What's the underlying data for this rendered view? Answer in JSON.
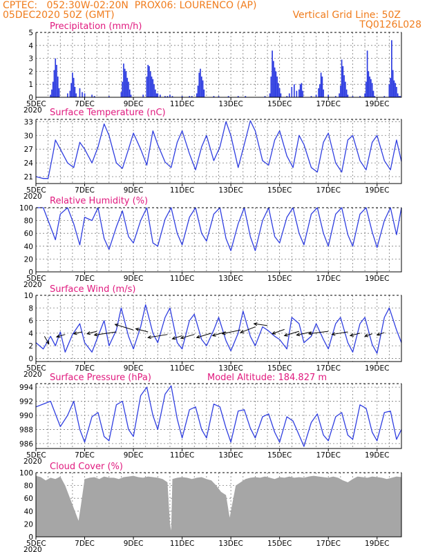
{
  "header": {
    "line1_left": "CPTEC:   052:30W-02:20N  PROX06: LOURENCO (AP)",
    "line2_left": "05DEC2020 50Z (GMT)",
    "line2_right": "Vertical Grid Line: 50Z",
    "line3_right": "TQ0126L028"
  },
  "x_axis": {
    "tick_labels": [
      "5DEC",
      "7DEC",
      "9DEC",
      "11DEC",
      "13DEC",
      "15DEC",
      "17DEC",
      "19DEC"
    ],
    "tick_days": [
      5,
      7,
      9,
      11,
      13,
      15,
      17,
      19
    ],
    "extra_tick_label": "2020",
    "range_days": [
      5,
      20
    ]
  },
  "colors": {
    "series": "#2e3de0",
    "bars": "#2e3de0",
    "cloud": "#a6a6a6",
    "header": "#f07c1c",
    "title": "#e0197e"
  },
  "chart_data": [
    {
      "id": "precip",
      "type": "bar",
      "title": "Precipitation (mm/h)",
      "ylim": [
        0,
        5
      ],
      "yticks": [
        0,
        1,
        2,
        3,
        4,
        5
      ],
      "x_unit": "day (Dec 2020)",
      "x": [
        5.6,
        5.65,
        5.7,
        5.75,
        5.8,
        5.85,
        5.9,
        5.95,
        6.3,
        6.4,
        6.45,
        6.5,
        6.55,
        6.6,
        6.65,
        6.8,
        6.9,
        7.0,
        7.3,
        7.4,
        8.0,
        8.5,
        8.55,
        8.6,
        8.65,
        8.7,
        8.75,
        8.8,
        8.85,
        8.9,
        9.4,
        9.55,
        9.6,
        9.65,
        9.7,
        9.75,
        9.8,
        9.85,
        9.9,
        9.95,
        10.0,
        10.1,
        10.3,
        10.4,
        10.5,
        10.6,
        11.0,
        11.3,
        11.4,
        11.6,
        11.65,
        11.7,
        11.75,
        11.8,
        11.85,
        11.9,
        12.3,
        12.5,
        12.9,
        13.3,
        13.6,
        14.4,
        14.6,
        14.65,
        14.7,
        14.75,
        14.8,
        14.85,
        14.9,
        14.95,
        15.0,
        15.05,
        15.3,
        15.4,
        15.5,
        15.6,
        15.7,
        15.8,
        15.85,
        15.9,
        15.95,
        16.3,
        16.5,
        16.6,
        16.65,
        16.7,
        16.75,
        16.8,
        17.0,
        17.3,
        17.45,
        17.5,
        17.55,
        17.6,
        17.65,
        17.7,
        17.75,
        17.8,
        18.0,
        18.3,
        18.5,
        18.55,
        18.6,
        18.65,
        18.7,
        18.75,
        18.8,
        18.85,
        18.9,
        19.3,
        19.5,
        19.55,
        19.6,
        19.65,
        19.7,
        19.75,
        19.8,
        19.85,
        19.9,
        19.95
      ],
      "values": [
        0.2,
        0.6,
        1.2,
        2.1,
        3.0,
        2.5,
        1.6,
        0.7,
        0.3,
        0.5,
        1.1,
        1.9,
        1.5,
        0.8,
        0.3,
        0.7,
        0.4,
        0.3,
        0.2,
        0.1,
        0.1,
        0.4,
        1.2,
        2.6,
        2.2,
        2.0,
        1.5,
        1.2,
        0.6,
        0.2,
        0.2,
        1.6,
        2.5,
        2.4,
        2.0,
        1.6,
        1.4,
        1.0,
        0.6,
        0.3,
        0.3,
        0.2,
        0.1,
        0.1,
        0.2,
        0.1,
        0.1,
        0.1,
        0.1,
        0.3,
        0.9,
        1.9,
        2.2,
        1.6,
        1.3,
        0.6,
        0.1,
        0.1,
        0.1,
        0.1,
        0.1,
        0.1,
        0.3,
        1.6,
        3.6,
        2.8,
        2.3,
        2.0,
        1.6,
        1.1,
        0.7,
        0.3,
        0.1,
        0.3,
        0.8,
        1.0,
        0.5,
        0.6,
        1.0,
        1.1,
        0.5,
        0.1,
        0.2,
        0.7,
        1.0,
        1.9,
        1.6,
        0.6,
        0.2,
        0.1,
        0.3,
        0.9,
        2.9,
        2.4,
        1.7,
        1.2,
        0.6,
        0.2,
        0.1,
        0.1,
        0.3,
        1.2,
        3.6,
        2.0,
        1.6,
        1.4,
        1.1,
        0.5,
        0.1,
        0.1,
        1.0,
        1.5,
        4.4,
        2.1,
        1.3,
        1.1,
        0.8,
        0.3,
        0.1,
        0.1
      ]
    },
    {
      "id": "temp",
      "type": "line",
      "title": "Surface Temperature (nC)",
      "ylim": [
        19.5,
        33.5
      ],
      "yticks": [
        21,
        24,
        27,
        30,
        33
      ],
      "x": [
        5.0,
        5.3,
        5.5,
        5.7,
        5.8,
        6.0,
        6.3,
        6.55,
        6.8,
        7.0,
        7.3,
        7.55,
        7.8,
        8.0,
        8.3,
        8.55,
        8.8,
        9.0,
        9.3,
        9.55,
        9.8,
        10.0,
        10.3,
        10.55,
        10.8,
        11.0,
        11.3,
        11.55,
        11.8,
        12.0,
        12.3,
        12.55,
        12.8,
        13.0,
        13.3,
        13.55,
        13.8,
        14.0,
        14.3,
        14.55,
        14.8,
        15.0,
        15.3,
        15.55,
        15.8,
        16.0,
        16.3,
        16.55,
        16.8,
        17.0,
        17.3,
        17.55,
        17.8,
        18.0,
        18.3,
        18.55,
        18.8,
        19.0,
        19.3,
        19.55,
        19.8,
        20.0
      ],
      "values": [
        21.0,
        20.6,
        20.6,
        26.0,
        29.0,
        27.0,
        24.0,
        23.0,
        28.5,
        27.0,
        24.0,
        27.5,
        32.5,
        30.0,
        24.0,
        22.8,
        27.0,
        30.5,
        27.0,
        23.5,
        31.0,
        28.0,
        24.2,
        23.0,
        28.5,
        31.0,
        26.0,
        22.5,
        27.5,
        30.0,
        24.5,
        27.5,
        33.0,
        30.0,
        23.0,
        28.0,
        33.2,
        31.0,
        24.5,
        23.5,
        29.0,
        31.0,
        25.5,
        23.0,
        30.0,
        28.0,
        23.0,
        22.0,
        28.5,
        30.5,
        24.0,
        22.0,
        29.0,
        30.0,
        24.5,
        22.5,
        28.5,
        30.0,
        24.5,
        22.5,
        29.0,
        24.3
      ]
    },
    {
      "id": "rh",
      "type": "line",
      "title": "Relative Humidity (%)",
      "ylim": [
        0,
        100
      ],
      "yticks": [
        0,
        20,
        40,
        60,
        80,
        100
      ],
      "x": [
        5.0,
        5.3,
        5.6,
        5.8,
        6.0,
        6.3,
        6.55,
        6.8,
        7.0,
        7.3,
        7.55,
        7.8,
        8.0,
        8.3,
        8.55,
        8.8,
        9.0,
        9.3,
        9.55,
        9.8,
        10.0,
        10.3,
        10.55,
        10.8,
        11.0,
        11.3,
        11.55,
        11.8,
        12.0,
        12.3,
        12.55,
        12.8,
        13.0,
        13.3,
        13.55,
        13.8,
        14.0,
        14.3,
        14.55,
        14.8,
        15.0,
        15.3,
        15.55,
        15.8,
        16.0,
        16.3,
        16.55,
        16.8,
        17.0,
        17.3,
        17.55,
        17.8,
        18.0,
        18.3,
        18.55,
        18.8,
        19.0,
        19.3,
        19.55,
        19.8,
        20.0
      ],
      "values": [
        100,
        100,
        70,
        50,
        90,
        100,
        75,
        42,
        85,
        80,
        100,
        52,
        35,
        70,
        95,
        55,
        45,
        80,
        100,
        45,
        40,
        82,
        100,
        60,
        42,
        85,
        100,
        60,
        48,
        90,
        100,
        52,
        33,
        75,
        100,
        55,
        33,
        80,
        100,
        55,
        45,
        85,
        100,
        60,
        42,
        90,
        100,
        60,
        40,
        90,
        100,
        58,
        40,
        90,
        100,
        62,
        38,
        80,
        100,
        58,
        100
      ]
    },
    {
      "id": "wind",
      "type": "line",
      "title": "Surface Wind (m/s)",
      "ylim": [
        -0.5,
        10
      ],
      "yticks": [
        0,
        2,
        4,
        6,
        8,
        10
      ],
      "x": [
        5.0,
        5.3,
        5.6,
        5.8,
        6.0,
        6.2,
        6.5,
        6.8,
        7.0,
        7.3,
        7.55,
        7.8,
        8.0,
        8.3,
        8.5,
        8.8,
        9.0,
        9.3,
        9.5,
        9.8,
        10.0,
        10.3,
        10.5,
        10.8,
        11.0,
        11.3,
        11.5,
        11.8,
        12.0,
        12.3,
        12.5,
        12.8,
        13.0,
        13.3,
        13.5,
        13.8,
        14.0,
        14.3,
        14.5,
        14.8,
        15.0,
        15.3,
        15.5,
        15.8,
        16.0,
        16.3,
        16.5,
        16.8,
        17.0,
        17.3,
        17.5,
        17.8,
        18.0,
        18.3,
        18.5,
        18.8,
        19.0,
        19.3,
        19.5,
        19.8,
        20.0
      ],
      "values": [
        2.5,
        1.5,
        3.5,
        2.0,
        4.2,
        1.0,
        3.8,
        5.5,
        2.5,
        1.0,
        3.5,
        6.0,
        2.0,
        4.5,
        8.0,
        3.5,
        1.5,
        5.0,
        8.5,
        4.0,
        2.5,
        6.5,
        8.0,
        2.5,
        1.5,
        6.0,
        7.0,
        3.0,
        2.0,
        4.5,
        6.5,
        2.8,
        1.2,
        4.0,
        7.5,
        3.5,
        2.0,
        5.0,
        4.5,
        3.5,
        3.0,
        1.5,
        6.5,
        5.5,
        2.5,
        3.5,
        5.5,
        3.0,
        1.5,
        5.5,
        6.5,
        2.5,
        1.0,
        5.5,
        6.5,
        2.2,
        0.8,
        6.5,
        8.0,
        4.5,
        2.5
      ],
      "arrows": [
        {
          "x": 5.35,
          "y": 3.5,
          "dx": 0.18,
          "dy": -1.2
        },
        {
          "x": 6.2,
          "y": 3.8,
          "dx": -0.35,
          "dy": -0.4
        },
        {
          "x": 6.9,
          "y": 4.2,
          "dx": -0.35,
          "dy": -0.3
        },
        {
          "x": 7.5,
          "y": 4.3,
          "dx": -0.4,
          "dy": -0.4
        },
        {
          "x": 8.3,
          "y": 4.2,
          "dx": -0.9,
          "dy": -0.5
        },
        {
          "x": 9.0,
          "y": 4.5,
          "dx": -0.75,
          "dy": 0.9
        },
        {
          "x": 9.6,
          "y": 4.2,
          "dx": -0.5,
          "dy": 0.5
        },
        {
          "x": 10.4,
          "y": 3.8,
          "dx": -0.8,
          "dy": -0.5
        },
        {
          "x": 11.0,
          "y": 3.6,
          "dx": -0.4,
          "dy": -0.5
        },
        {
          "x": 11.5,
          "y": 3.8,
          "dx": -0.55,
          "dy": -0.6
        },
        {
          "x": 12.2,
          "y": 4.0,
          "dx": -0.6,
          "dy": -0.7
        },
        {
          "x": 12.8,
          "y": 4.2,
          "dx": -0.55,
          "dy": -0.6
        },
        {
          "x": 13.4,
          "y": 4.5,
          "dx": -0.75,
          "dy": -0.6
        },
        {
          "x": 14.0,
          "y": 5.0,
          "dx": -0.6,
          "dy": -0.9
        },
        {
          "x": 14.5,
          "y": 5.2,
          "dx": -0.55,
          "dy": 0.3
        },
        {
          "x": 15.2,
          "y": 4.6,
          "dx": -0.5,
          "dy": -0.7
        },
        {
          "x": 15.8,
          "y": 4.3,
          "dx": -0.6,
          "dy": -0.7
        },
        {
          "x": 16.3,
          "y": 4.2,
          "dx": -0.6,
          "dy": -0.5
        },
        {
          "x": 17.0,
          "y": 4.3,
          "dx": -0.8,
          "dy": -0.4
        },
        {
          "x": 17.8,
          "y": 4.2,
          "dx": -0.65,
          "dy": -0.4
        },
        {
          "x": 18.3,
          "y": 4.0,
          "dx": -0.4,
          "dy": -0.4
        },
        {
          "x": 18.8,
          "y": 3.9,
          "dx": -0.3,
          "dy": -0.4
        },
        {
          "x": 19.3,
          "y": 4.1,
          "dx": -0.3,
          "dy": -0.4
        }
      ]
    },
    {
      "id": "pres",
      "type": "line",
      "title": "Surface Pressure (hPa)",
      "annotation": "Model Altitude: 184.827 m",
      "ylim": [
        985.3,
        994.5
      ],
      "yticks": [
        986,
        988,
        990,
        992,
        994
      ],
      "x": [
        5.0,
        5.3,
        5.6,
        5.8,
        6.0,
        6.3,
        6.55,
        6.8,
        7.0,
        7.3,
        7.55,
        7.8,
        8.0,
        8.3,
        8.55,
        8.8,
        9.0,
        9.3,
        9.55,
        9.8,
        10.0,
        10.3,
        10.55,
        10.8,
        11.0,
        11.3,
        11.55,
        11.8,
        12.0,
        12.3,
        12.55,
        12.8,
        13.0,
        13.3,
        13.55,
        13.8,
        14.0,
        14.3,
        14.55,
        14.8,
        15.0,
        15.3,
        15.55,
        15.8,
        16.0,
        16.3,
        16.55,
        16.8,
        17.0,
        17.3,
        17.55,
        17.8,
        18.0,
        18.3,
        18.55,
        18.8,
        19.0,
        19.3,
        19.55,
        19.8,
        20.0
      ],
      "values": [
        991.2,
        991.6,
        992.0,
        990.2,
        988.4,
        990.0,
        992.0,
        988.0,
        986.2,
        989.8,
        990.4,
        987.0,
        986.4,
        991.5,
        992.0,
        988.0,
        987.0,
        992.8,
        994.0,
        990.0,
        988.0,
        993.0,
        994.2,
        989.5,
        986.8,
        990.8,
        991.2,
        988.0,
        986.8,
        991.6,
        991.2,
        988.2,
        986.2,
        990.6,
        990.8,
        988.2,
        986.8,
        989.8,
        990.2,
        987.6,
        986.2,
        989.8,
        989.2,
        987.2,
        985.6,
        989.0,
        990.2,
        987.2,
        986.4,
        989.8,
        990.4,
        987.2,
        986.6,
        991.5,
        991.0,
        987.6,
        986.4,
        990.4,
        990.6,
        986.6,
        988.0
      ]
    },
    {
      "id": "cloud",
      "type": "area",
      "title": "Cloud Cover (%)",
      "ylim": [
        0,
        100
      ],
      "yticks": [
        0,
        20,
        40,
        60,
        80,
        100
      ],
      "x": [
        5.0,
        5.2,
        5.4,
        5.6,
        5.8,
        6.0,
        6.2,
        6.4,
        6.6,
        6.75,
        6.85,
        7.0,
        7.2,
        7.4,
        7.6,
        7.8,
        8.0,
        8.2,
        8.4,
        8.6,
        8.8,
        9.0,
        9.2,
        9.4,
        9.6,
        9.8,
        10.0,
        10.2,
        10.4,
        10.5,
        10.55,
        10.6,
        10.8,
        11.0,
        11.2,
        11.4,
        11.6,
        11.8,
        12.0,
        12.2,
        12.4,
        12.6,
        12.8,
        12.95,
        13.05,
        13.2,
        13.4,
        13.6,
        13.8,
        14.0,
        14.2,
        14.4,
        14.6,
        14.8,
        15.0,
        15.2,
        15.4,
        15.6,
        15.8,
        16.0,
        16.2,
        16.4,
        16.6,
        16.8,
        17.0,
        17.2,
        17.4,
        17.6,
        17.8,
        18.0,
        18.2,
        18.4,
        18.6,
        18.8,
        19.0,
        19.2,
        19.4,
        19.6,
        19.8,
        20.0
      ],
      "values": [
        95,
        93,
        88,
        92,
        90,
        94,
        80,
        60,
        40,
        25,
        50,
        90,
        92,
        93,
        90,
        94,
        92,
        92,
        90,
        93,
        94,
        95,
        93,
        92,
        94,
        93,
        92,
        90,
        85,
        20,
        10,
        90,
        92,
        93,
        92,
        90,
        92,
        93,
        90,
        88,
        80,
        70,
        65,
        30,
        50,
        80,
        85,
        90,
        92,
        93,
        92,
        94,
        92,
        90,
        93,
        92,
        94,
        92,
        93,
        92,
        94,
        95,
        94,
        93,
        92,
        94,
        92,
        88,
        85,
        90,
        94,
        93,
        92,
        94,
        93,
        92,
        90,
        92,
        94,
        93
      ]
    }
  ]
}
